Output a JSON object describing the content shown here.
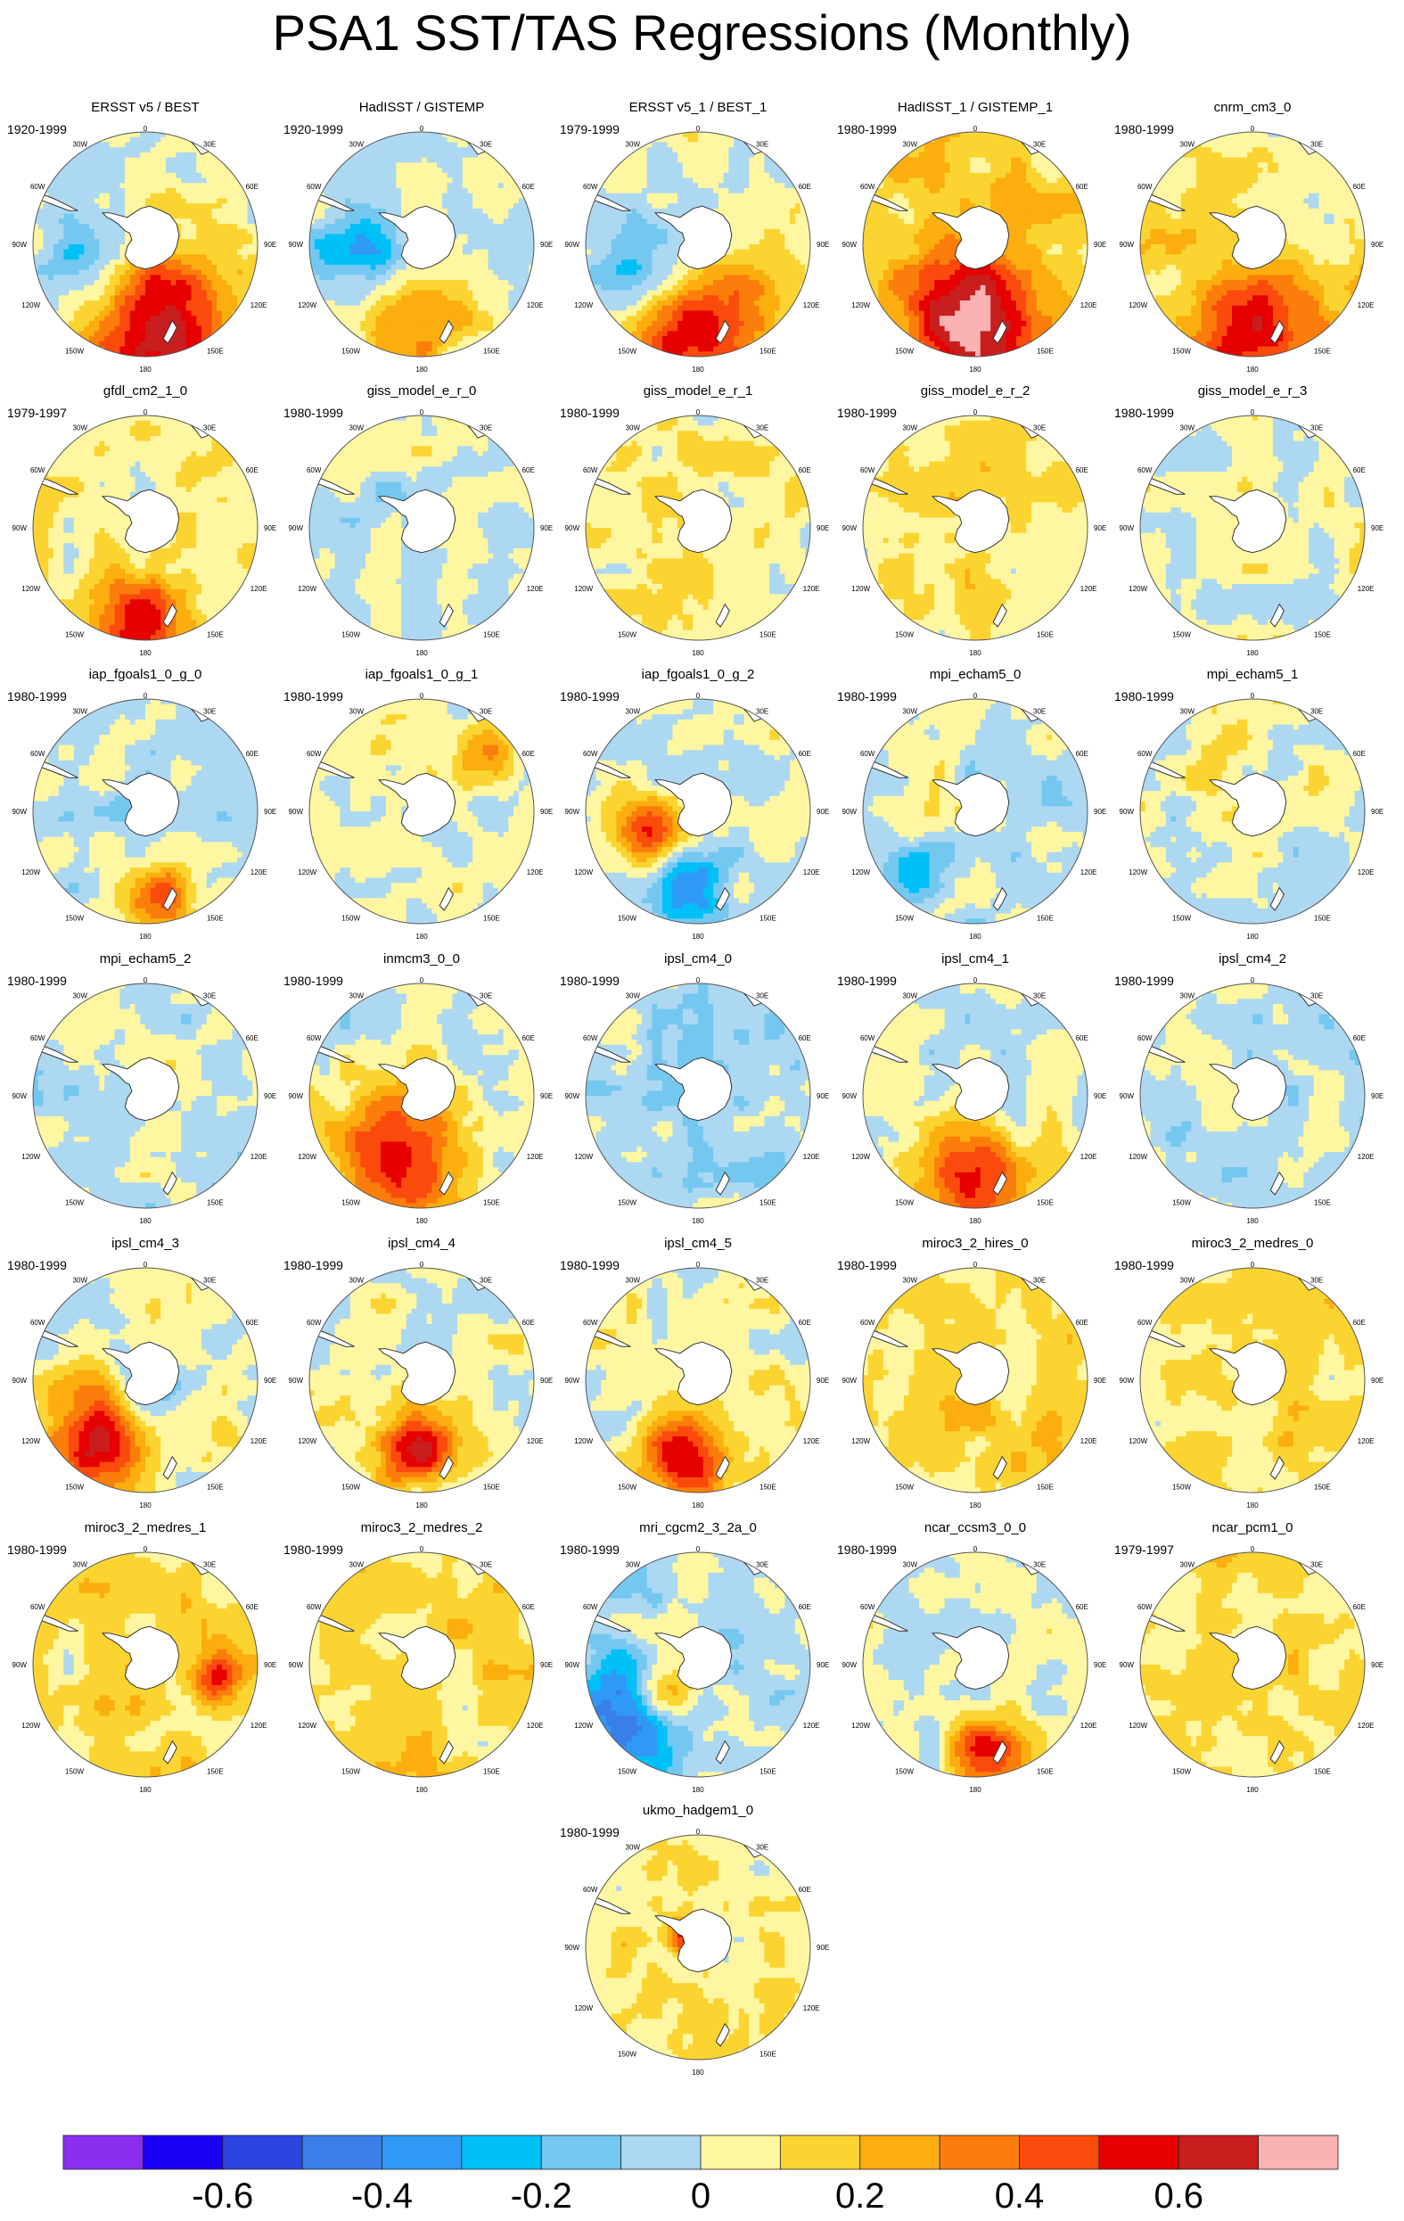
{
  "title": "PSA1 SST/TAS Regressions (Monthly)",
  "colors": {
    "land": "#ffffff",
    "coast": "#333333",
    "outline": "#555555"
  },
  "map": {
    "projection": "south-polar stereographic",
    "longitude_labels": [
      "0",
      "30E",
      "60E",
      "90E",
      "120E",
      "150E",
      "180",
      "150W",
      "120W",
      "90W",
      "60W",
      "30W"
    ]
  },
  "panels": [
    {
      "name": "ERSST v5 / BEST",
      "period": "1920-1999",
      "pattern": {
        "b": 0.05,
        "pos": [
          [
            0.52,
            0.84,
            0.34,
            0.62
          ]
        ],
        "neg": [
          [
            0.27,
            0.6,
            0.26,
            -0.32
          ]
        ]
      }
    },
    {
      "name": "HadISST / GISTEMP",
      "period": "1920-1999",
      "pattern": {
        "b": 0.0,
        "pos": [
          [
            0.45,
            0.8,
            0.26,
            0.35
          ]
        ],
        "neg": [
          [
            0.24,
            0.58,
            0.2,
            -0.34
          ]
        ]
      }
    },
    {
      "name": "ERSST v5_1 / BEST_1",
      "period": "1979-1999",
      "pattern": {
        "b": 0.02,
        "pos": [
          [
            0.48,
            0.88,
            0.32,
            0.62
          ]
        ],
        "neg": [
          [
            0.25,
            0.58,
            0.24,
            -0.34
          ]
        ]
      }
    },
    {
      "name": "HadISST_1 / GISTEMP_1",
      "period": "1980-1999",
      "pattern": {
        "b": 0.15,
        "pos": [
          [
            0.5,
            0.86,
            0.3,
            0.62
          ]
        ],
        "neg": []
      }
    },
    {
      "name": "cnrm_cm3_0",
      "period": "1980-1999",
      "pattern": {
        "b": 0.1,
        "pos": [
          [
            0.5,
            0.88,
            0.28,
            0.55
          ]
        ],
        "neg": []
      }
    },
    {
      "name": "gfdl_cm2_1_0",
      "period": "1979-1997",
      "pattern": {
        "b": 0.08,
        "pos": [
          [
            0.47,
            0.9,
            0.18,
            0.45
          ]
        ],
        "neg": []
      }
    },
    {
      "name": "giss_model_e_r_0",
      "period": "1980-1999",
      "pattern": {
        "b": 0.0,
        "pos": [],
        "neg": []
      }
    },
    {
      "name": "giss_model_e_r_1",
      "period": "1980-1999",
      "pattern": {
        "b": 0.08,
        "pos": [],
        "neg": []
      }
    },
    {
      "name": "giss_model_e_r_2",
      "period": "1980-1999",
      "pattern": {
        "b": 0.1,
        "pos": [],
        "neg": []
      }
    },
    {
      "name": "giss_model_e_r_3",
      "period": "1980-1999",
      "pattern": {
        "b": 0.02,
        "pos": [],
        "neg": []
      }
    },
    {
      "name": "iap_fgoals1_0_g_0",
      "period": "1980-1999",
      "pattern": {
        "b": -0.02,
        "pos": [
          [
            0.55,
            0.88,
            0.14,
            0.5
          ]
        ],
        "neg": []
      }
    },
    {
      "name": "iap_fgoals1_0_g_1",
      "period": "1980-1999",
      "pattern": {
        "b": 0.02,
        "pos": [
          [
            0.78,
            0.2,
            0.12,
            0.3
          ]
        ],
        "neg": []
      }
    },
    {
      "name": "iap_fgoals1_0_g_2",
      "period": "1980-1999",
      "pattern": {
        "b": 0.0,
        "pos": [
          [
            0.28,
            0.62,
            0.14,
            0.55
          ]
        ],
        "neg": [
          [
            0.46,
            0.82,
            0.16,
            -0.45
          ]
        ]
      }
    },
    {
      "name": "mpi_echam5_0",
      "period": "1980-1999",
      "pattern": {
        "b": 0.0,
        "pos": [],
        "neg": [
          [
            0.22,
            0.78,
            0.12,
            -0.35
          ]
        ]
      }
    },
    {
      "name": "mpi_echam5_1",
      "period": "1980-1999",
      "pattern": {
        "b": 0.02,
        "pos": [],
        "neg": []
      }
    },
    {
      "name": "mpi_echam5_2",
      "period": "1980-1999",
      "pattern": {
        "b": 0.0,
        "pos": [],
        "neg": []
      }
    },
    {
      "name": "inmcm3_0_0",
      "period": "1980-1999",
      "pattern": {
        "b": 0.0,
        "pos": [
          [
            0.4,
            0.78,
            0.3,
            0.6
          ]
        ],
        "neg": []
      }
    },
    {
      "name": "ipsl_cm4_0",
      "period": "1980-1999",
      "pattern": {
        "b": -0.05,
        "pos": [],
        "neg": []
      }
    },
    {
      "name": "ipsl_cm4_1",
      "period": "1980-1999",
      "pattern": {
        "b": 0.0,
        "pos": [
          [
            0.5,
            0.85,
            0.22,
            0.55
          ]
        ],
        "neg": []
      }
    },
    {
      "name": "ipsl_cm4_2",
      "period": "1980-1999",
      "pattern": {
        "b": -0.02,
        "pos": [],
        "neg": []
      }
    },
    {
      "name": "ipsl_cm4_3",
      "period": "1980-1999",
      "pattern": {
        "b": 0.02,
        "pos": [
          [
            0.28,
            0.75,
            0.24,
            0.6
          ]
        ],
        "neg": [
          [
            0.48,
            0.55,
            0.16,
            -0.3
          ]
        ]
      }
    },
    {
      "name": "ipsl_cm4_4",
      "period": "1980-1999",
      "pattern": {
        "b": 0.02,
        "pos": [
          [
            0.47,
            0.8,
            0.18,
            0.55
          ]
        ],
        "neg": []
      }
    },
    {
      "name": "ipsl_cm4_5",
      "period": "1980-1999",
      "pattern": {
        "b": 0.05,
        "pos": [
          [
            0.45,
            0.85,
            0.18,
            0.6
          ]
        ],
        "neg": []
      }
    },
    {
      "name": "miroc3_2_hires_0",
      "period": "1980-1999",
      "pattern": {
        "b": 0.12,
        "pos": [],
        "neg": []
      }
    },
    {
      "name": "miroc3_2_medres_0",
      "period": "1980-1999",
      "pattern": {
        "b": 0.12,
        "pos": [],
        "neg": []
      }
    },
    {
      "name": "miroc3_2_medres_1",
      "period": "1980-1999",
      "pattern": {
        "b": 0.12,
        "pos": [
          [
            0.82,
            0.55,
            0.1,
            0.45
          ]
        ],
        "neg": []
      }
    },
    {
      "name": "miroc3_2_medres_2",
      "period": "1980-1999",
      "pattern": {
        "b": 0.12,
        "pos": [],
        "neg": []
      }
    },
    {
      "name": "mri_cgcm2_3_2a_0",
      "period": "1980-1999",
      "pattern": {
        "b": -0.02,
        "pos": [
          [
            0.36,
            0.63,
            0.14,
            0.5
          ]
        ],
        "neg": [
          [
            0.18,
            0.72,
            0.26,
            -0.45
          ]
        ]
      }
    },
    {
      "name": "ncar_ccsm3_0_0",
      "period": "1980-1999",
      "pattern": {
        "b": 0.0,
        "pos": [
          [
            0.55,
            0.9,
            0.18,
            0.5
          ]
        ],
        "neg": []
      }
    },
    {
      "name": "ncar_pcm1_0",
      "period": "1979-1997",
      "pattern": {
        "b": 0.1,
        "pos": [],
        "neg": []
      }
    },
    {
      "name": "ukmo_hadgem1_0",
      "period": "1980-1999",
      "pattern": {
        "b": 0.08,
        "pos": [
          [
            0.45,
            0.45,
            0.08,
            0.5
          ]
        ],
        "neg": []
      }
    }
  ],
  "colorbar": {
    "colors": [
      "#8b2ef0",
      "#1a00f5",
      "#2b45e0",
      "#3a7fe8",
      "#2f9af5",
      "#00c0f8",
      "#74c8f0",
      "#acd8f2",
      "#fef6a0",
      "#fbd431",
      "#fbae0e",
      "#fb7d0b",
      "#fa4a0c",
      "#e60000",
      "#c81e1e",
      "#fbb2b2"
    ],
    "thresholds": [
      -0.7,
      -0.6,
      -0.5,
      -0.4,
      -0.3,
      -0.2,
      -0.1,
      0,
      0.1,
      0.2,
      0.3,
      0.4,
      0.5,
      0.6,
      0.7
    ],
    "tick_labels": [
      "-0.6",
      "-0.4",
      "-0.2",
      "0",
      "0.2",
      "0.4",
      "0.6"
    ],
    "tick_values": [
      -0.6,
      -0.4,
      -0.2,
      0,
      0.2,
      0.4,
      0.6
    ],
    "range": [
      -0.8,
      0.8
    ]
  }
}
